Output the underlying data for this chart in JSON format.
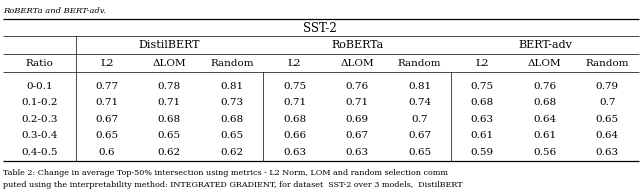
{
  "title": "SST-2",
  "col_groups": [
    {
      "name": "DistilBERT",
      "cols": [
        "L2",
        "ΔLOM",
        "Random"
      ]
    },
    {
      "name": "RoBERTa",
      "cols": [
        "L2",
        "ΔLOM",
        "Random"
      ]
    },
    {
      "name": "BERT-adv",
      "cols": [
        "L2",
        "ΔLOM",
        "Random"
      ]
    }
  ],
  "row_header": "Ratio",
  "rows": [
    {
      "ratio": "0-0.1",
      "vals": [
        "0.77",
        "0.78",
        "0.81",
        "0.75",
        "0.76",
        "0.81",
        "0.75",
        "0.76",
        "0.79"
      ]
    },
    {
      "ratio": "0.1-0.2",
      "vals": [
        "0.71",
        "0.71",
        "0.73",
        "0.71",
        "0.71",
        "0.74",
        "0.68",
        "0.68",
        "0.7"
      ]
    },
    {
      "ratio": "0.2-0.3",
      "vals": [
        "0.67",
        "0.68",
        "0.68",
        "0.68",
        "0.69",
        "0.7",
        "0.63",
        "0.64",
        "0.65"
      ]
    },
    {
      "ratio": "0.3-0.4",
      "vals": [
        "0.65",
        "0.65",
        "0.65",
        "0.66",
        "0.67",
        "0.67",
        "0.61",
        "0.61",
        "0.64"
      ]
    },
    {
      "ratio": "0.4-0.5",
      "vals": [
        "0.6",
        "0.62",
        "0.62",
        "0.63",
        "0.63",
        "0.65",
        "0.59",
        "0.56",
        "0.63"
      ]
    }
  ],
  "header_above": "RoBERTa and BERT-adv.",
  "caption1": "Table 2: Change in average Top-50% intersection using metrics - L2 Norm, LOM and random selection comm",
  "caption2": "puted using the interpretability method: INTEGRATED GRADIENT, for dataset  SST-2 over 3 models,  DistilBERT"
}
